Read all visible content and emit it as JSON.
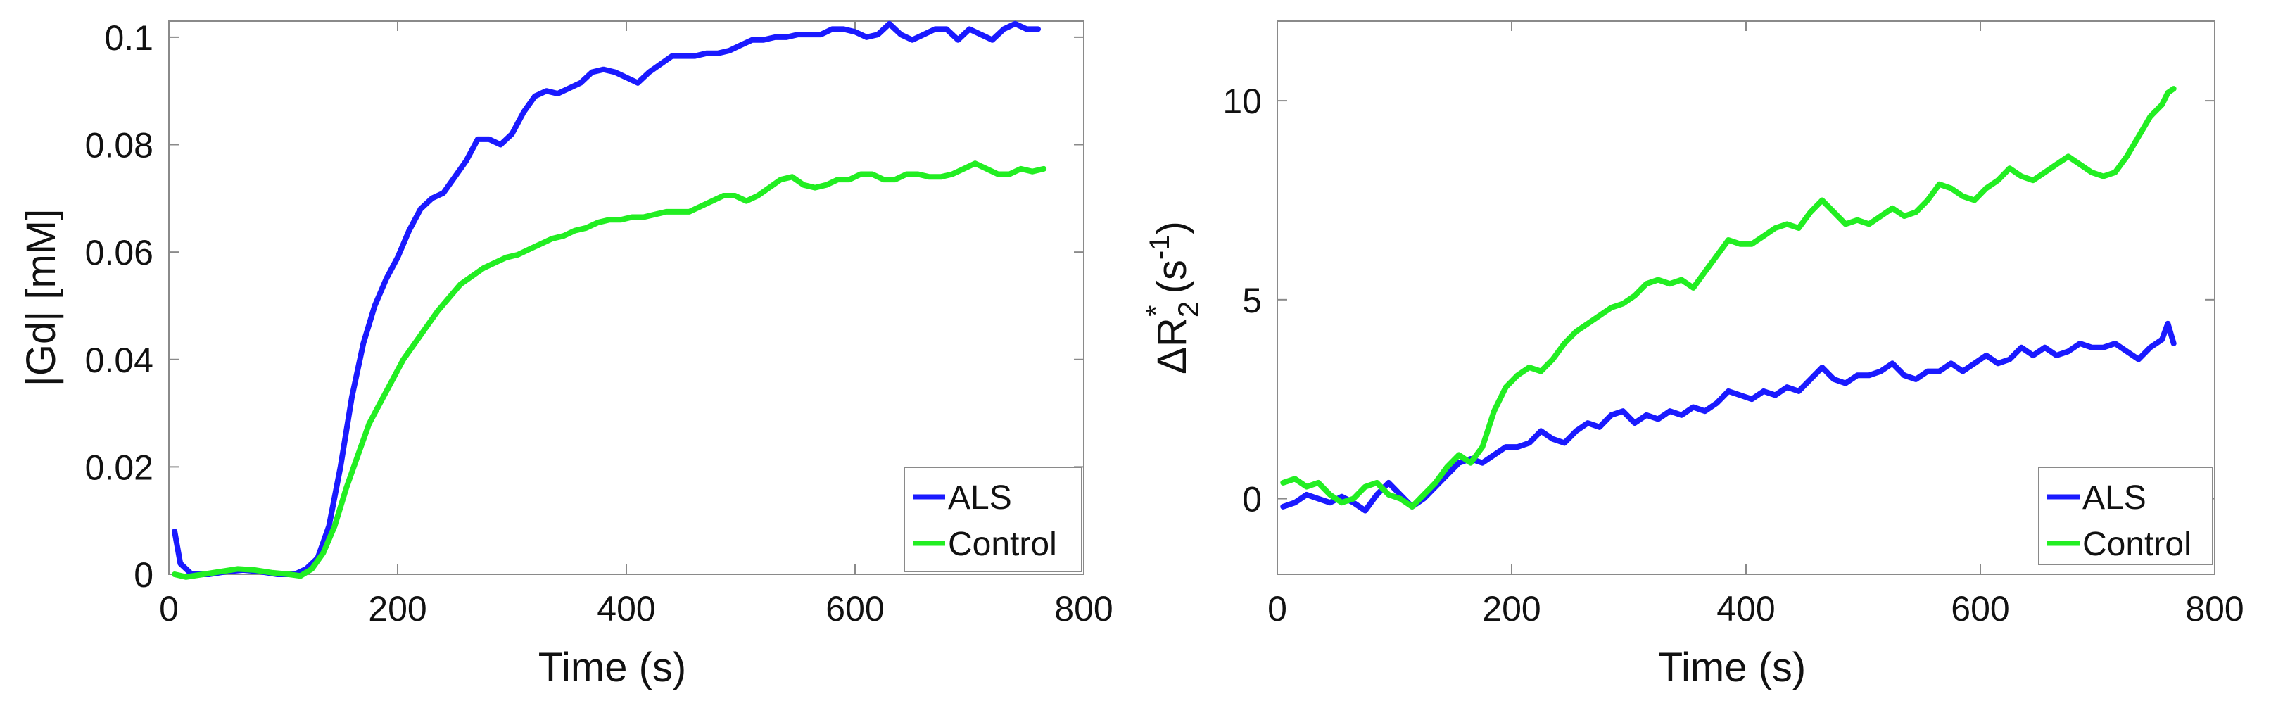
{
  "chart_data": [
    {
      "type": "line",
      "xlabel": "Time (s)",
      "ylabel": "|Gd| [mM]",
      "xlim": [
        0,
        800
      ],
      "ylim": [
        0,
        0.103
      ],
      "xticks": [
        0,
        200,
        400,
        600,
        800
      ],
      "xtick_labels": [
        "0",
        "200",
        "400",
        "600",
        "800"
      ],
      "yticks": [
        0,
        0.02,
        0.04,
        0.06,
        0.08,
        0.1
      ],
      "ytick_labels": [
        "0",
        "0.02",
        "0.04",
        "0.06",
        "0.08",
        "0.1"
      ],
      "grid": false,
      "legend_position": "bottom-right",
      "series": [
        {
          "name": "ALS",
          "color": "#1a1aff",
          "x": [
            5,
            10,
            20,
            35,
            50,
            65,
            80,
            95,
            110,
            120,
            130,
            140,
            150,
            160,
            170,
            180,
            190,
            200,
            210,
            220,
            230,
            240,
            250,
            260,
            270,
            280,
            290,
            300,
            310,
            320,
            330,
            340,
            350,
            360,
            370,
            380,
            390,
            400,
            410,
            420,
            430,
            440,
            450,
            460,
            470,
            480,
            490,
            500,
            510,
            520,
            530,
            540,
            550,
            560,
            570,
            580,
            590,
            600,
            610,
            620,
            630,
            640,
            650,
            660,
            670,
            680,
            690,
            700,
            710,
            720,
            730,
            740,
            750,
            760
          ],
          "y": [
            0.008,
            0.002,
            0.0,
            0.0,
            0.0005,
            0.0008,
            0.0005,
            0.0,
            0.0,
            0.001,
            0.003,
            0.009,
            0.02,
            0.033,
            0.043,
            0.05,
            0.055,
            0.059,
            0.064,
            0.068,
            0.07,
            0.071,
            0.074,
            0.077,
            0.081,
            0.081,
            0.08,
            0.082,
            0.086,
            0.089,
            0.09,
            0.0895,
            0.0905,
            0.0915,
            0.0935,
            0.094,
            0.0935,
            0.0925,
            0.0915,
            0.0935,
            0.095,
            0.0965,
            0.0965,
            0.0965,
            0.097,
            0.097,
            0.0975,
            0.0985,
            0.0995,
            0.0995,
            0.1,
            0.1,
            0.1005,
            0.1005,
            0.1005,
            0.1015,
            0.1015,
            0.101,
            0.1,
            0.1005,
            0.1025,
            0.1005,
            0.0995,
            0.1005,
            0.1015,
            0.1015,
            0.0995,
            0.1015,
            0.1005,
            0.0995,
            0.1015,
            0.1025,
            0.1015,
            0.1015
          ]
        },
        {
          "name": "Control",
          "color": "#22ee22",
          "x": [
            5,
            15,
            30,
            45,
            60,
            75,
            90,
            105,
            115,
            125,
            135,
            145,
            155,
            165,
            175,
            185,
            195,
            205,
            215,
            225,
            235,
            245,
            255,
            265,
            275,
            285,
            295,
            305,
            315,
            325,
            335,
            345,
            355,
            365,
            375,
            385,
            395,
            405,
            415,
            425,
            435,
            445,
            455,
            465,
            475,
            485,
            495,
            505,
            515,
            525,
            535,
            545,
            555,
            565,
            575,
            585,
            595,
            605,
            615,
            625,
            635,
            645,
            655,
            665,
            675,
            685,
            695,
            705,
            715,
            725,
            735,
            745,
            755,
            765
          ],
          "y": [
            0.0,
            -0.0005,
            0.0,
            0.0005,
            0.001,
            0.0008,
            0.0003,
            0.0,
            -0.0003,
            0.001,
            0.004,
            0.009,
            0.016,
            0.022,
            0.028,
            0.032,
            0.036,
            0.04,
            0.043,
            0.046,
            0.049,
            0.0515,
            0.054,
            0.0555,
            0.057,
            0.058,
            0.059,
            0.0595,
            0.0605,
            0.0615,
            0.0625,
            0.063,
            0.064,
            0.0645,
            0.0655,
            0.066,
            0.066,
            0.0665,
            0.0665,
            0.067,
            0.0675,
            0.0675,
            0.0675,
            0.0685,
            0.0695,
            0.0705,
            0.0705,
            0.0695,
            0.0705,
            0.072,
            0.0735,
            0.074,
            0.0725,
            0.072,
            0.0725,
            0.0735,
            0.0735,
            0.0745,
            0.0745,
            0.0735,
            0.0735,
            0.0745,
            0.0745,
            0.074,
            0.074,
            0.0745,
            0.0755,
            0.0765,
            0.0755,
            0.0745,
            0.0745,
            0.0755,
            0.075,
            0.0755
          ]
        }
      ]
    },
    {
      "type": "line",
      "xlabel": "Time (s)",
      "ylabel": "ΔR2* (s-1)",
      "ylabel_parts": {
        "main": "ΔR",
        "sub": "2",
        "sup": "*",
        "rest": " (s",
        "rest_sup": "-1",
        "close": ")"
      },
      "xlim": [
        0,
        800
      ],
      "ylim": [
        -1.9,
        12
      ],
      "xticks": [
        0,
        200,
        400,
        600,
        800
      ],
      "xtick_labels": [
        "0",
        "200",
        "400",
        "600",
        "800"
      ],
      "yticks": [
        0,
        5,
        10
      ],
      "ytick_labels": [
        "0",
        "5",
        "10"
      ],
      "grid": false,
      "legend_position": "bottom-right",
      "series": [
        {
          "name": "ALS",
          "color": "#1a1aff",
          "x": [
            5,
            15,
            25,
            35,
            45,
            55,
            65,
            75,
            85,
            95,
            105,
            115,
            125,
            135,
            145,
            155,
            165,
            175,
            185,
            195,
            205,
            215,
            225,
            235,
            245,
            255,
            265,
            275,
            285,
            295,
            305,
            315,
            325,
            335,
            345,
            355,
            365,
            375,
            385,
            395,
            405,
            415,
            425,
            435,
            445,
            455,
            465,
            475,
            485,
            495,
            505,
            515,
            525,
            535,
            545,
            555,
            565,
            575,
            585,
            595,
            605,
            615,
            625,
            635,
            645,
            655,
            665,
            675,
            685,
            695,
            705,
            715,
            725,
            735,
            745,
            755,
            760,
            765
          ],
          "y": [
            -0.2,
            -0.1,
            0.1,
            0.0,
            -0.1,
            0.05,
            -0.1,
            -0.3,
            0.1,
            0.4,
            0.1,
            -0.2,
            0.0,
            0.3,
            0.6,
            0.9,
            1.0,
            0.9,
            1.1,
            1.3,
            1.3,
            1.4,
            1.7,
            1.5,
            1.4,
            1.7,
            1.9,
            1.8,
            2.1,
            2.2,
            1.9,
            2.1,
            2.0,
            2.2,
            2.1,
            2.3,
            2.2,
            2.4,
            2.7,
            2.6,
            2.5,
            2.7,
            2.6,
            2.8,
            2.7,
            3.0,
            3.3,
            3.0,
            2.9,
            3.1,
            3.1,
            3.2,
            3.4,
            3.1,
            3.0,
            3.2,
            3.2,
            3.4,
            3.2,
            3.4,
            3.6,
            3.4,
            3.5,
            3.8,
            3.6,
            3.8,
            3.6,
            3.7,
            3.9,
            3.8,
            3.8,
            3.9,
            3.7,
            3.5,
            3.8,
            4.0,
            4.4,
            3.9
          ]
        },
        {
          "name": "Control",
          "color": "#22ee22",
          "x": [
            5,
            15,
            25,
            35,
            45,
            55,
            65,
            75,
            85,
            95,
            105,
            115,
            125,
            135,
            145,
            155,
            165,
            175,
            185,
            195,
            205,
            215,
            225,
            235,
            245,
            255,
            265,
            275,
            285,
            295,
            305,
            315,
            325,
            335,
            345,
            355,
            365,
            375,
            385,
            395,
            405,
            415,
            425,
            435,
            445,
            455,
            465,
            475,
            485,
            495,
            505,
            515,
            525,
            535,
            545,
            555,
            565,
            575,
            585,
            595,
            605,
            615,
            625,
            635,
            645,
            655,
            665,
            675,
            685,
            695,
            705,
            715,
            725,
            735,
            745,
            755,
            760,
            765
          ],
          "y": [
            0.4,
            0.5,
            0.3,
            0.4,
            0.1,
            -0.1,
            0.0,
            0.3,
            0.4,
            0.1,
            0.0,
            -0.2,
            0.1,
            0.4,
            0.8,
            1.1,
            0.9,
            1.3,
            2.2,
            2.8,
            3.1,
            3.3,
            3.2,
            3.5,
            3.9,
            4.2,
            4.4,
            4.6,
            4.8,
            4.9,
            5.1,
            5.4,
            5.5,
            5.4,
            5.5,
            5.3,
            5.7,
            6.1,
            6.5,
            6.4,
            6.4,
            6.6,
            6.8,
            6.9,
            6.8,
            7.2,
            7.5,
            7.2,
            6.9,
            7.0,
            6.9,
            7.1,
            7.3,
            7.1,
            7.2,
            7.5,
            7.9,
            7.8,
            7.6,
            7.5,
            7.8,
            8.0,
            8.3,
            8.1,
            8.0,
            8.2,
            8.4,
            8.6,
            8.4,
            8.2,
            8.1,
            8.2,
            8.6,
            9.1,
            9.6,
            9.9,
            10.2,
            10.3
          ]
        }
      ]
    }
  ]
}
